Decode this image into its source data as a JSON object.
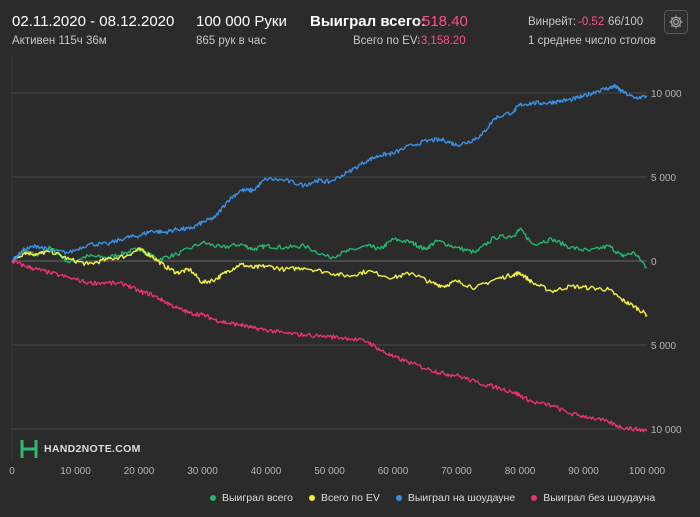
{
  "header": {
    "date_range": "02.11.2020 - 08.12.2020",
    "active_time": "Активен 115ч 36м",
    "hands_count": "100 000 Руки",
    "hands_per_hour": "865 рук в час",
    "won_total_label": "Выиграл всего:",
    "won_total_value": "-518.40",
    "ev_total_label": "Всего по EV:",
    "ev_total_value": "-3,158.20",
    "winrate_label": "Винрейт:",
    "winrate_value": "-0.52",
    "winrate_suffix": "66/100",
    "tables_text": "1 среднее число столов"
  },
  "colors": {
    "background": "#2b2b2b",
    "won_total": "#22b573",
    "ev_total": "#f2f23a",
    "showdown": "#3b8fe0",
    "non_showdown": "#e8336d",
    "negative": "#ff4f86"
  },
  "logo": {
    "text": "HAND2NOTE.COM",
    "icon": "h2n-logo-icon"
  },
  "settings": {
    "icon": "gear-icon"
  },
  "chart_data": {
    "type": "line",
    "x_range": [
      0,
      100000
    ],
    "y_range": [
      -10000,
      10000
    ],
    "x_ticks": [
      "0",
      "10 000",
      "20 000",
      "30 000",
      "40 000",
      "50 000",
      "60 000",
      "70 000",
      "80 000",
      "90 000",
      "100 000"
    ],
    "y_ticks": [
      {
        "value": 10000,
        "label": "10 000"
      },
      {
        "value": 5000,
        "label": "5 000"
      },
      {
        "value": 0,
        "label": "0"
      },
      {
        "value": -5000,
        "label": "5 000"
      },
      {
        "value": -10000,
        "label": "10 000"
      }
    ],
    "legend_placement": "bottom",
    "grid": "horizontal",
    "series": [
      {
        "name": "Выиграл всего",
        "color_key": "won_total",
        "x": [
          0,
          2000,
          4000,
          6000,
          9000,
          12000,
          15000,
          18000,
          20000,
          21000,
          23000,
          26000,
          30000,
          33000,
          36000,
          38000,
          40000,
          43000,
          46000,
          50000,
          53000,
          56000,
          58000,
          60000,
          63000,
          65000,
          67000,
          70000,
          73000,
          76000,
          79000,
          80000,
          82000,
          85000,
          88000,
          91000,
          94000,
          96000,
          98000,
          100000
        ],
        "y": [
          0,
          600,
          300,
          800,
          -100,
          300,
          200,
          500,
          750,
          500,
          100,
          400,
          1100,
          800,
          1000,
          700,
          900,
          800,
          900,
          200,
          600,
          900,
          700,
          1300,
          1100,
          700,
          1200,
          800,
          500,
          1400,
          1500,
          1900,
          1000,
          1300,
          800,
          600,
          900,
          300,
          500,
          -400
        ]
      },
      {
        "name": "Всего по EV",
        "color_key": "ev_total",
        "x": [
          0,
          2000,
          4000,
          6000,
          9000,
          12000,
          15000,
          18000,
          20000,
          22000,
          24000,
          26000,
          28000,
          30000,
          32000,
          34000,
          36000,
          38000,
          40000,
          43000,
          46000,
          50000,
          53000,
          56000,
          60000,
          63000,
          66000,
          68000,
          70000,
          73000,
          76000,
          79000,
          80000,
          82000,
          85000,
          88000,
          91000,
          94000,
          96000,
          98000,
          100000
        ],
        "y": [
          0,
          500,
          400,
          600,
          100,
          -200,
          100,
          300,
          700,
          300,
          -300,
          -700,
          -500,
          -1300,
          -1100,
          -600,
          -200,
          -400,
          -300,
          -500,
          -400,
          -700,
          -900,
          -600,
          -1000,
          -700,
          -1300,
          -1500,
          -1200,
          -1600,
          -1100,
          -800,
          -700,
          -1300,
          -1800,
          -1500,
          -1600,
          -1700,
          -2300,
          -2700,
          -3200
        ]
      },
      {
        "name": "Выиграл на шоудауне",
        "color_key": "showdown",
        "x": [
          0,
          2000,
          4000,
          6000,
          9000,
          12000,
          15000,
          18000,
          20000,
          22000,
          24000,
          26000,
          28000,
          30000,
          32000,
          34000,
          36000,
          38000,
          40000,
          43000,
          46000,
          48000,
          50000,
          53000,
          56000,
          58000,
          60000,
          63000,
          66000,
          68000,
          70000,
          72000,
          74000,
          76000,
          79000,
          80000,
          82000,
          84000,
          86000,
          88000,
          90000,
          92000,
          94000,
          95000,
          96000,
          98000,
          100000
        ],
        "y": [
          0,
          700,
          900,
          600,
          500,
          1000,
          1000,
          1400,
          1500,
          1800,
          1700,
          1900,
          1900,
          2300,
          2600,
          3600,
          4200,
          4200,
          4900,
          4800,
          4500,
          4800,
          4700,
          5300,
          6000,
          6300,
          6400,
          6900,
          7200,
          7200,
          6900,
          7100,
          7500,
          8500,
          8900,
          9300,
          9400,
          9400,
          9500,
          9600,
          9800,
          10100,
          10300,
          10400,
          10100,
          9700,
          9800
        ]
      },
      {
        "name": "Выиграл без шоудауна",
        "color_key": "non_showdown",
        "x": [
          0,
          2000,
          4000,
          6000,
          9000,
          12000,
          15000,
          18000,
          20000,
          22000,
          24000,
          26000,
          28000,
          30000,
          32000,
          34000,
          36000,
          38000,
          40000,
          43000,
          46000,
          50000,
          53000,
          56000,
          58000,
          60000,
          63000,
          66000,
          68000,
          70000,
          73000,
          76000,
          79000,
          80000,
          82000,
          85000,
          88000,
          91000,
          94000,
          96000,
          98000,
          100000
        ],
        "y": [
          0,
          -300,
          -500,
          -700,
          -1000,
          -1300,
          -1300,
          -1400,
          -1800,
          -2000,
          -2400,
          -2800,
          -3100,
          -3200,
          -3500,
          -3700,
          -3800,
          -4000,
          -4100,
          -4300,
          -4400,
          -4500,
          -4600,
          -4800,
          -5300,
          -5700,
          -6100,
          -6500,
          -6700,
          -6800,
          -7200,
          -7500,
          -7800,
          -8000,
          -8400,
          -8600,
          -9100,
          -9300,
          -9600,
          -9900,
          -10000,
          -10100
        ]
      }
    ]
  }
}
